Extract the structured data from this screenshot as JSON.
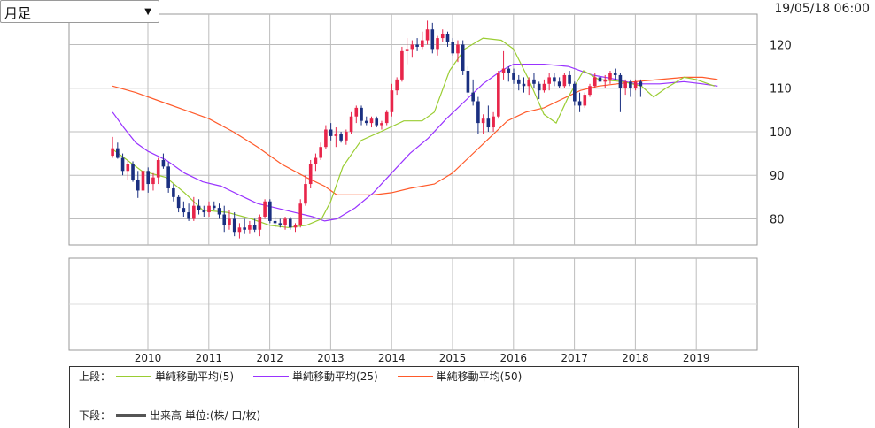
{
  "header": {
    "period_select": "月足",
    "timestamp": "19/05/18 06:00"
  },
  "chart_data": {
    "type": "candlestick",
    "x_ticks": [
      "2010",
      "2011",
      "2012",
      "2013",
      "2014",
      "2015",
      "2016",
      "2017",
      "2018",
      "2019"
    ],
    "y_ticks": [
      80,
      90,
      100,
      110,
      120
    ],
    "ylim": [
      74,
      127
    ],
    "grid": true,
    "colors": {
      "up": "#e8254a",
      "down": "#1a2f80",
      "ma5": "#9acd32",
      "ma25": "#9933ff",
      "ma50": "#ff5a2a"
    },
    "candles_ohlc": [
      [
        94.5,
        98.8,
        94.0,
        96.2
      ],
      [
        96.2,
        97.5,
        93.8,
        94.0
      ],
      [
        94.0,
        95.0,
        90.0,
        91.0
      ],
      [
        91.0,
        93.5,
        89.0,
        92.5
      ],
      [
        92.5,
        93.2,
        88.5,
        89.0
      ],
      [
        89.0,
        91.0,
        84.8,
        86.5
      ],
      [
        86.5,
        92.0,
        85.5,
        91.0
      ],
      [
        91.0,
        91.8,
        86.0,
        88.0
      ],
      [
        88.0,
        90.5,
        86.5,
        89.5
      ],
      [
        89.5,
        94.0,
        88.0,
        93.5
      ],
      [
        93.5,
        95.0,
        91.5,
        92.0
      ],
      [
        92.0,
        93.0,
        86.0,
        87.0
      ],
      [
        87.0,
        88.0,
        84.0,
        85.0
      ],
      [
        85.0,
        85.5,
        81.5,
        82.5
      ],
      [
        82.5,
        84.0,
        80.5,
        81.5
      ],
      [
        81.5,
        83.5,
        79.5,
        80.0
      ],
      [
        80.0,
        85.0,
        79.5,
        83.0
      ],
      [
        83.0,
        84.5,
        81.0,
        82.0
      ],
      [
        82.0,
        83.0,
        80.5,
        81.5
      ],
      [
        81.5,
        84.0,
        80.5,
        83.0
      ],
      [
        83.0,
        84.0,
        82.0,
        82.5
      ],
      [
        82.5,
        83.5,
        80.0,
        81.0
      ],
      [
        81.0,
        83.0,
        77.0,
        78.5
      ],
      [
        78.5,
        82.0,
        77.5,
        80.0
      ],
      [
        80.0,
        81.5,
        76.0,
        77.0
      ],
      [
        77.0,
        79.0,
        75.5,
        78.0
      ],
      [
        78.0,
        80.0,
        76.5,
        77.5
      ],
      [
        77.5,
        79.5,
        76.5,
        78.5
      ],
      [
        78.5,
        80.0,
        77.0,
        77.5
      ],
      [
        77.5,
        81.0,
        76.0,
        80.5
      ],
      [
        80.5,
        84.5,
        80.0,
        84.0
      ],
      [
        84.0,
        84.5,
        79.0,
        79.5
      ],
      [
        79.5,
        80.5,
        78.0,
        79.0
      ],
      [
        79.0,
        80.0,
        78.0,
        78.5
      ],
      [
        78.5,
        80.5,
        77.5,
        80.0
      ],
      [
        80.0,
        80.5,
        77.5,
        78.0
      ],
      [
        78.0,
        79.0,
        77.0,
        78.5
      ],
      [
        78.5,
        84.5,
        78.0,
        83.5
      ],
      [
        83.5,
        90.0,
        83.0,
        88.0
      ],
      [
        88.0,
        93.5,
        87.0,
        92.5
      ],
      [
        92.5,
        95.0,
        91.0,
        94.0
      ],
      [
        94.0,
        97.5,
        93.5,
        96.5
      ],
      [
        96.5,
        101.5,
        96.0,
        100.5
      ],
      [
        100.5,
        102.0,
        98.0,
        99.0
      ],
      [
        99.0,
        101.0,
        96.5,
        99.5
      ],
      [
        99.5,
        100.0,
        97.5,
        98.0
      ],
      [
        98.0,
        100.5,
        97.0,
        100.0
      ],
      [
        100.0,
        104.5,
        99.5,
        103.5
      ],
      [
        103.5,
        106.0,
        102.0,
        105.5
      ],
      [
        105.5,
        106.0,
        101.5,
        102.5
      ],
      [
        102.5,
        103.5,
        101.5,
        102.0
      ],
      [
        102.0,
        103.5,
        101.0,
        103.0
      ],
      [
        103.0,
        103.5,
        101.0,
        101.5
      ],
      [
        101.5,
        102.5,
        100.5,
        102.0
      ],
      [
        102.0,
        105.0,
        101.5,
        104.5
      ],
      [
        104.5,
        111.0,
        103.5,
        109.5
      ],
      [
        109.5,
        112.5,
        108.5,
        112.0
      ],
      [
        112.0,
        119.5,
        111.5,
        118.5
      ],
      [
        118.5,
        121.5,
        115.5,
        119.0
      ],
      [
        119.0,
        121.0,
        117.0,
        120.0
      ],
      [
        120.0,
        121.5,
        118.5,
        119.5
      ],
      [
        119.5,
        123.0,
        119.0,
        121.0
      ],
      [
        121.0,
        125.5,
        120.0,
        123.5
      ],
      [
        123.5,
        125.0,
        118.0,
        119.0
      ],
      [
        119.0,
        122.0,
        117.5,
        121.5
      ],
      [
        121.5,
        123.5,
        120.5,
        122.5
      ],
      [
        122.5,
        123.0,
        119.5,
        120.5
      ],
      [
        120.5,
        121.5,
        117.5,
        118.0
      ],
      [
        118.0,
        121.0,
        116.0,
        120.0
      ],
      [
        120.0,
        121.0,
        113.0,
        114.0
      ],
      [
        114.0,
        115.0,
        108.0,
        109.0
      ],
      [
        109.0,
        112.0,
        106.0,
        107.0
      ],
      [
        107.0,
        108.0,
        99.5,
        102.0
      ],
      [
        102.0,
        104.0,
        99.5,
        103.0
      ],
      [
        103.0,
        106.0,
        100.0,
        101.0
      ],
      [
        101.0,
        104.5,
        100.0,
        103.5
      ],
      [
        103.5,
        114.0,
        103.0,
        113.5
      ],
      [
        113.5,
        118.5,
        112.0,
        114.5
      ],
      [
        114.5,
        115.0,
        111.5,
        113.5
      ],
      [
        113.5,
        114.5,
        111.0,
        112.0
      ],
      [
        112.0,
        113.0,
        109.5,
        111.0
      ],
      [
        111.0,
        112.5,
        109.0,
        110.5
      ],
      [
        110.5,
        112.5,
        108.5,
        112.0
      ],
      [
        112.0,
        113.5,
        110.0,
        111.0
      ],
      [
        111.0,
        111.5,
        107.5,
        109.5
      ],
      [
        109.5,
        112.0,
        109.0,
        111.0
      ],
      [
        111.0,
        113.5,
        109.5,
        112.5
      ],
      [
        112.5,
        113.5,
        110.5,
        111.5
      ],
      [
        111.5,
        112.5,
        110.0,
        110.5
      ],
      [
        110.5,
        113.5,
        110.0,
        113.0
      ],
      [
        113.0,
        114.0,
        110.5,
        111.0
      ],
      [
        111.0,
        111.5,
        106.0,
        107.0
      ],
      [
        107.0,
        109.0,
        104.5,
        106.0
      ],
      [
        106.0,
        109.0,
        105.5,
        108.5
      ],
      [
        108.5,
        111.0,
        108.0,
        110.5
      ],
      [
        110.5,
        113.5,
        110.0,
        112.5
      ],
      [
        112.5,
        114.5,
        110.5,
        111.5
      ],
      [
        111.5,
        113.0,
        110.0,
        112.0
      ],
      [
        112.0,
        114.0,
        111.0,
        113.5
      ],
      [
        113.5,
        114.5,
        112.0,
        113.0
      ],
      [
        113.0,
        113.5,
        104.5,
        110.0
      ],
      [
        110.0,
        112.0,
        108.5,
        111.5
      ],
      [
        111.5,
        112.0,
        108.0,
        110.0
      ],
      [
        110.0,
        112.0,
        109.5,
        111.5
      ],
      [
        111.5,
        112.0,
        108.0,
        110.5
      ]
    ],
    "ma5": [
      [
        2009.42,
        96.0
      ],
      [
        2009.9,
        91.0
      ],
      [
        2010.3,
        89.5
      ],
      [
        2010.6,
        86.0
      ],
      [
        2010.9,
        82.0
      ],
      [
        2011.3,
        81.5
      ],
      [
        2011.7,
        80.0
      ],
      [
        2012.0,
        78.5
      ],
      [
        2012.3,
        78.0
      ],
      [
        2012.6,
        78.5
      ],
      [
        2012.85,
        80.0
      ],
      [
        2013.0,
        84.0
      ],
      [
        2013.2,
        92.0
      ],
      [
        2013.5,
        98.0
      ],
      [
        2013.9,
        100.5
      ],
      [
        2014.2,
        102.5
      ],
      [
        2014.5,
        102.5
      ],
      [
        2014.7,
        104.5
      ],
      [
        2014.95,
        114.0
      ],
      [
        2015.2,
        119.0
      ],
      [
        2015.5,
        121.5
      ],
      [
        2015.8,
        121.0
      ],
      [
        2016.0,
        119.0
      ],
      [
        2016.25,
        112.0
      ],
      [
        2016.5,
        104.0
      ],
      [
        2016.7,
        102.0
      ],
      [
        2016.9,
        108.0
      ],
      [
        2017.15,
        114.0
      ],
      [
        2017.4,
        112.0
      ],
      [
        2017.8,
        111.5
      ],
      [
        2018.1,
        110.5
      ],
      [
        2018.3,
        108.0
      ],
      [
        2018.5,
        110.0
      ],
      [
        2018.8,
        112.5
      ],
      [
        2019.0,
        112.0
      ],
      [
        2019.3,
        110.5
      ]
    ],
    "ma25": [
      [
        2009.42,
        104.5
      ],
      [
        2009.6,
        101.0
      ],
      [
        2009.8,
        97.5
      ],
      [
        2010.0,
        95.5
      ],
      [
        2010.3,
        93.5
      ],
      [
        2010.6,
        90.5
      ],
      [
        2010.9,
        88.5
      ],
      [
        2011.2,
        87.5
      ],
      [
        2011.5,
        85.5
      ],
      [
        2011.8,
        83.5
      ],
      [
        2012.1,
        82.5
      ],
      [
        2012.4,
        81.5
      ],
      [
        2012.7,
        80.5
      ],
      [
        2012.9,
        79.5
      ],
      [
        2013.1,
        80.0
      ],
      [
        2013.4,
        82.5
      ],
      [
        2013.7,
        86.0
      ],
      [
        2014.0,
        90.5
      ],
      [
        2014.3,
        95.0
      ],
      [
        2014.6,
        98.5
      ],
      [
        2014.9,
        103.0
      ],
      [
        2015.2,
        107.0
      ],
      [
        2015.5,
        111.0
      ],
      [
        2015.8,
        114.0
      ],
      [
        2016.0,
        115.5
      ],
      [
        2016.5,
        115.5
      ],
      [
        2016.9,
        115.0
      ],
      [
        2017.3,
        113.0
      ],
      [
        2017.7,
        112.0
      ],
      [
        2018.0,
        111.0
      ],
      [
        2018.4,
        111.0
      ],
      [
        2018.8,
        111.5
      ],
      [
        2019.1,
        111.0
      ],
      [
        2019.35,
        110.5
      ]
    ],
    "ma50": [
      [
        2009.42,
        110.5
      ],
      [
        2009.8,
        109.0
      ],
      [
        2010.2,
        107.0
      ],
      [
        2010.6,
        105.0
      ],
      [
        2011.0,
        103.0
      ],
      [
        2011.4,
        100.0
      ],
      [
        2011.8,
        96.5
      ],
      [
        2012.2,
        92.5
      ],
      [
        2012.6,
        89.5
      ],
      [
        2012.9,
        87.5
      ],
      [
        2013.1,
        85.5
      ],
      [
        2013.4,
        85.5
      ],
      [
        2013.7,
        85.5
      ],
      [
        2014.0,
        86.0
      ],
      [
        2014.3,
        87.0
      ],
      [
        2014.7,
        88.0
      ],
      [
        2015.0,
        90.5
      ],
      [
        2015.3,
        94.5
      ],
      [
        2015.6,
        98.5
      ],
      [
        2015.9,
        102.5
      ],
      [
        2016.2,
        104.5
      ],
      [
        2016.5,
        105.5
      ],
      [
        2016.8,
        107.5
      ],
      [
        2017.1,
        109.5
      ],
      [
        2017.4,
        110.5
      ],
      [
        2017.7,
        111.0
      ],
      [
        2018.0,
        111.5
      ],
      [
        2018.4,
        112.0
      ],
      [
        2018.8,
        112.5
      ],
      [
        2019.1,
        112.5
      ],
      [
        2019.35,
        112.0
      ]
    ]
  },
  "legend": {
    "upper_label": "上段：",
    "lower_label": "下段：",
    "ma5": "単純移動平均(5)",
    "ma25": "単純移動平均(25)",
    "ma50": "単純移動平均(50)",
    "volume": "出来高 単位:(株/ 口/枚)",
    "volume_color": "#555555"
  }
}
